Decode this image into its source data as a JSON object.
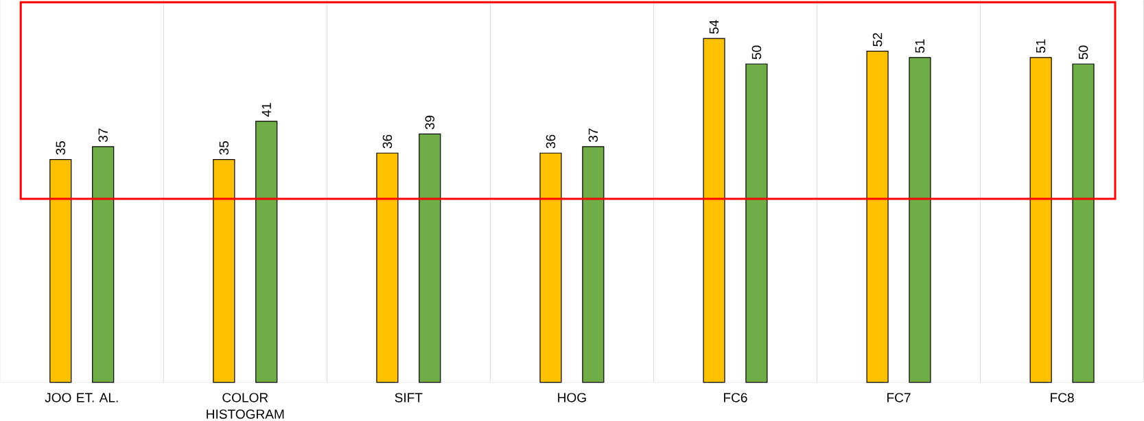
{
  "chart_data": {
    "type": "bar",
    "categories": [
      "JOO ET. AL.",
      "COLOR HISTOGRAM",
      "SIFT",
      "HOG",
      "FC6",
      "FC7",
      "FC8"
    ],
    "series": [
      {
        "color": "#ffc000",
        "values": [
          35,
          35,
          36,
          36,
          54,
          52,
          51
        ]
      },
      {
        "color": "#70ad47",
        "values": [
          37,
          41,
          39,
          37,
          50,
          51,
          50
        ]
      }
    ],
    "relative": false,
    "ylim": [
      0,
      60
    ],
    "data_labels": true,
    "grid": "x"
  }
}
